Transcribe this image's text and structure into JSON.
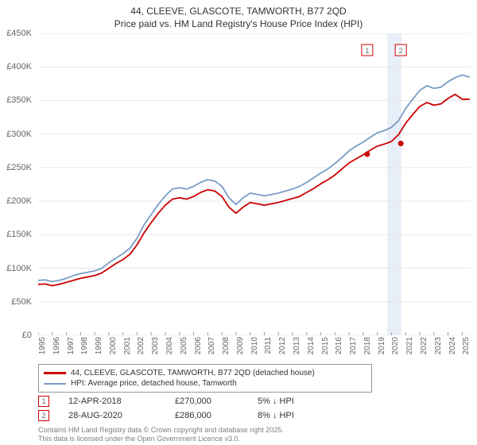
{
  "title_line1": "44, CLEEVE, GLASCOTE, TAMWORTH, B77 2QD",
  "title_line2": "Price paid vs. HM Land Registry's House Price Index (HPI)",
  "chart": {
    "type": "line",
    "xlim": [
      1995,
      2025.6
    ],
    "ylim": [
      0,
      450000
    ],
    "ytick_step": 50000,
    "x_tick_years": [
      1995,
      1996,
      1997,
      1998,
      1999,
      2000,
      2001,
      2002,
      2003,
      2004,
      2005,
      2006,
      2007,
      2008,
      2009,
      2010,
      2011,
      2012,
      2013,
      2014,
      2015,
      2016,
      2017,
      2018,
      2019,
      2020,
      2021,
      2022,
      2023,
      2024,
      2025
    ],
    "y_tick_labels": [
      "£0",
      "£50K",
      "£100K",
      "£150K",
      "£200K",
      "£250K",
      "£300K",
      "£350K",
      "£400K",
      "£450K"
    ],
    "background_color": "#ffffff",
    "grid_color": "#e6e6e6",
    "axis_color": "#cccccc",
    "highlight_band": {
      "x_start": 2019.7,
      "x_end": 2020.7,
      "fill": "#e8eef7"
    },
    "line_width": 1.8,
    "series": [
      {
        "name": "hpi",
        "label": "HPI: Average price, detached house, Tamworth",
        "color": "#7a9cc6",
        "values": [
          [
            1995,
            82000
          ],
          [
            1995.5,
            82500
          ],
          [
            1996,
            80000
          ],
          [
            1996.5,
            82000
          ],
          [
            1997,
            85000
          ],
          [
            1997.5,
            89000
          ],
          [
            1998,
            92000
          ],
          [
            1998.5,
            94000
          ],
          [
            1999,
            96000
          ],
          [
            1999.5,
            100000
          ],
          [
            2000,
            108000
          ],
          [
            2000.5,
            115000
          ],
          [
            2001,
            122000
          ],
          [
            2001.5,
            130000
          ],
          [
            2002,
            145000
          ],
          [
            2002.5,
            165000
          ],
          [
            2003,
            180000
          ],
          [
            2003.5,
            195000
          ],
          [
            2004,
            208000
          ],
          [
            2004.5,
            218000
          ],
          [
            2005,
            220000
          ],
          [
            2005.5,
            218000
          ],
          [
            2006,
            222000
          ],
          [
            2006.5,
            228000
          ],
          [
            2007,
            232000
          ],
          [
            2007.5,
            230000
          ],
          [
            2008,
            222000
          ],
          [
            2008.5,
            205000
          ],
          [
            2009,
            195000
          ],
          [
            2009.5,
            205000
          ],
          [
            2010,
            212000
          ],
          [
            2010.5,
            210000
          ],
          [
            2011,
            208000
          ],
          [
            2011.5,
            210000
          ],
          [
            2012,
            212000
          ],
          [
            2012.5,
            215000
          ],
          [
            2013,
            218000
          ],
          [
            2013.5,
            222000
          ],
          [
            2014,
            228000
          ],
          [
            2014.5,
            235000
          ],
          [
            2015,
            242000
          ],
          [
            2015.5,
            248000
          ],
          [
            2016,
            256000
          ],
          [
            2016.5,
            265000
          ],
          [
            2017,
            275000
          ],
          [
            2017.5,
            282000
          ],
          [
            2018,
            288000
          ],
          [
            2018.5,
            295000
          ],
          [
            2019,
            302000
          ],
          [
            2019.5,
            305000
          ],
          [
            2020,
            310000
          ],
          [
            2020.5,
            320000
          ],
          [
            2021,
            338000
          ],
          [
            2021.5,
            352000
          ],
          [
            2022,
            365000
          ],
          [
            2022.5,
            372000
          ],
          [
            2023,
            368000
          ],
          [
            2023.5,
            370000
          ],
          [
            2024,
            378000
          ],
          [
            2024.5,
            384000
          ],
          [
            2025,
            388000
          ],
          [
            2025.5,
            385000
          ]
        ]
      },
      {
        "name": "price-paid",
        "label": "44, CLEEVE, GLASCOTE, TAMWORTH, B77 2QD (detached house)",
        "color": "#cc0000",
        "values": [
          [
            1995,
            76000
          ],
          [
            1995.5,
            76500
          ],
          [
            1996,
            74000
          ],
          [
            1996.5,
            76000
          ],
          [
            1997,
            79000
          ],
          [
            1997.5,
            82000
          ],
          [
            1998,
            85000
          ],
          [
            1998.5,
            87000
          ],
          [
            1999,
            89000
          ],
          [
            1999.5,
            93000
          ],
          [
            2000,
            100000
          ],
          [
            2000.5,
            107000
          ],
          [
            2001,
            113000
          ],
          [
            2001.5,
            121000
          ],
          [
            2002,
            135000
          ],
          [
            2002.5,
            153000
          ],
          [
            2003,
            168000
          ],
          [
            2003.5,
            182000
          ],
          [
            2004,
            194000
          ],
          [
            2004.5,
            203000
          ],
          [
            2005,
            205000
          ],
          [
            2005.5,
            203000
          ],
          [
            2006,
            207000
          ],
          [
            2006.5,
            213000
          ],
          [
            2007,
            217000
          ],
          [
            2007.5,
            215000
          ],
          [
            2008,
            207000
          ],
          [
            2008.5,
            191000
          ],
          [
            2009,
            182000
          ],
          [
            2009.5,
            191000
          ],
          [
            2010,
            198000
          ],
          [
            2010.5,
            196000
          ],
          [
            2011,
            194000
          ],
          [
            2011.5,
            196000
          ],
          [
            2012,
            198000
          ],
          [
            2012.5,
            201000
          ],
          [
            2013,
            204000
          ],
          [
            2013.5,
            207000
          ],
          [
            2014,
            213000
          ],
          [
            2014.5,
            219000
          ],
          [
            2015,
            226000
          ],
          [
            2015.5,
            232000
          ],
          [
            2016,
            239000
          ],
          [
            2016.5,
            248000
          ],
          [
            2017,
            257000
          ],
          [
            2017.5,
            263000
          ],
          [
            2018,
            269000
          ],
          [
            2018.5,
            276000
          ],
          [
            2019,
            282000
          ],
          [
            2019.5,
            285000
          ],
          [
            2020,
            289000
          ],
          [
            2020.5,
            299000
          ],
          [
            2021,
            316000
          ],
          [
            2021.5,
            329000
          ],
          [
            2022,
            341000
          ],
          [
            2022.5,
            347000
          ],
          [
            2023,
            343000
          ],
          [
            2023.5,
            345000
          ],
          [
            2024,
            353000
          ],
          [
            2024.5,
            359000
          ],
          [
            2025,
            352000
          ],
          [
            2025.5,
            352000
          ]
        ]
      }
    ],
    "markers": [
      {
        "label": "1",
        "x": 2018.28,
        "y": 270000,
        "color": "#cc0000",
        "box_color": "#cc0000"
      },
      {
        "label": "2",
        "x": 2020.66,
        "y": 286000,
        "color": "#cc0000",
        "box_color": "#cc0000"
      }
    ]
  },
  "legend": {
    "series1_label": "44, CLEEVE, GLASCOTE, TAMWORTH, B77 2QD (detached house)",
    "series1_color": "#cc0000",
    "series2_label": "HPI: Average price, detached house, Tamworth",
    "series2_color": "#7a9cc6"
  },
  "callouts": [
    {
      "label": "1",
      "date": "12-APR-2018",
      "price": "£270,000",
      "diff": "5% ↓ HPI",
      "color": "#cc0000"
    },
    {
      "label": "2",
      "date": "28-AUG-2020",
      "price": "£286,000",
      "diff": "8% ↓ HPI",
      "color": "#cc0000"
    }
  ],
  "footer_line1": "Contains HM Land Registry data © Crown copyright and database right 2025.",
  "footer_line2": "This data is licensed under the Open Government Licence v3.0.",
  "colors": {
    "text": "#333333",
    "axis_text": "#666666",
    "footer_text": "#808080"
  }
}
